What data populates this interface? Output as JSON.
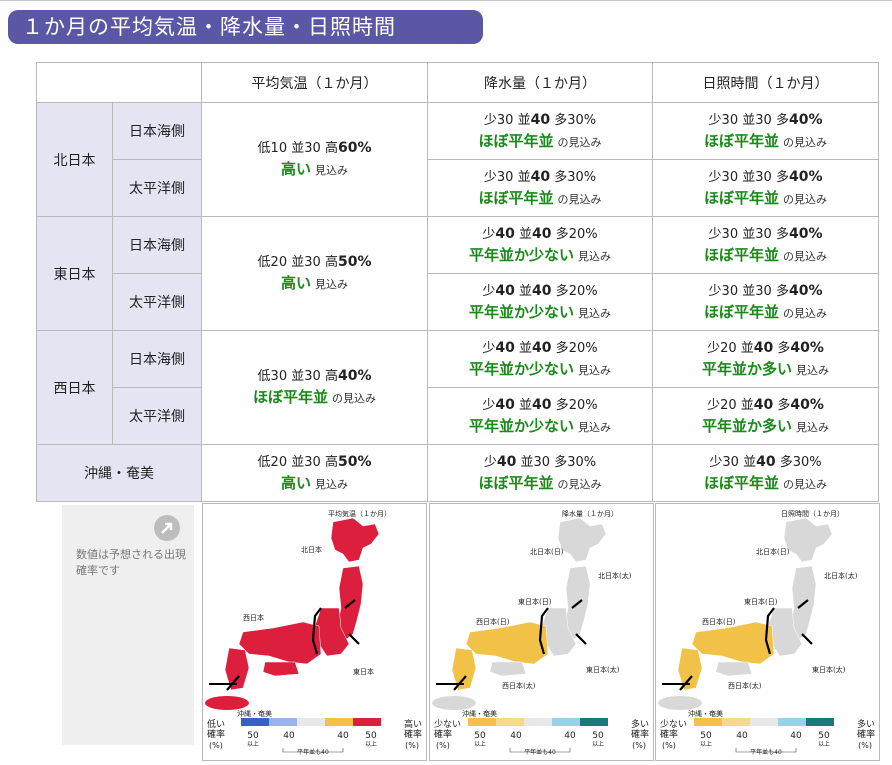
{
  "title": "１か月の平均気温・降水量・日照時間",
  "columns": [
    "平均気温（１か月）",
    "降水量（１か月）",
    "日照時間（１か月）"
  ],
  "regions": [
    {
      "name": "北日本",
      "subs": [
        "日本海側",
        "太平洋側"
      ]
    },
    {
      "name": "東日本",
      "subs": [
        "日本海側",
        "太平洋側"
      ]
    },
    {
      "name": "西日本",
      "subs": [
        "日本海側",
        "太平洋側"
      ]
    },
    {
      "name": "沖縄・奄美"
    }
  ],
  "labels": {
    "low_t": "低",
    "mid": "並",
    "high_t": "高",
    "less": "少",
    "more": "多",
    "pct": "%",
    "mikomi": "の見込み",
    "mikomi2": "見込み"
  },
  "temperature": [
    {
      "l": "10",
      "m": "30",
      "h": "60",
      "emph": "h",
      "eval": "高い",
      "suffix": "見込み"
    },
    {
      "l": "20",
      "m": "30",
      "h": "50",
      "emph": "h",
      "eval": "高い",
      "suffix": "見込み"
    },
    {
      "l": "30",
      "m": "30",
      "h": "40",
      "emph": "h",
      "eval": "ほぼ平年並",
      "suffix": "の見込み"
    },
    {
      "l": "20",
      "m": "30",
      "h": "50",
      "emph": "h",
      "eval": "高い",
      "suffix": "見込み"
    }
  ],
  "precipitation": [
    {
      "l": "30",
      "m": "40",
      "h": "30",
      "emph": "m",
      "eval": "ほぼ平年並",
      "suffix": "の見込み"
    },
    {
      "l": "30",
      "m": "40",
      "h": "30",
      "emph": "m",
      "eval": "ほぼ平年並",
      "suffix": "の見込み"
    },
    {
      "l": "40",
      "m": "40",
      "h": "20",
      "emph": "lm",
      "eval": "平年並か少ない",
      "suffix": "見込み"
    },
    {
      "l": "40",
      "m": "40",
      "h": "20",
      "emph": "lm",
      "eval": "平年並か少ない",
      "suffix": "見込み"
    },
    {
      "l": "40",
      "m": "40",
      "h": "20",
      "emph": "lm",
      "eval": "平年並か少ない",
      "suffix": "見込み"
    },
    {
      "l": "40",
      "m": "40",
      "h": "20",
      "emph": "lm",
      "eval": "平年並か少ない",
      "suffix": "見込み"
    },
    {
      "l": "40",
      "m": "30",
      "h": "30",
      "emph": "l",
      "eval": "ほぼ平年並",
      "suffix": "の見込み"
    }
  ],
  "sunshine": [
    {
      "l": "30",
      "m": "30",
      "h": "40",
      "emph": "h",
      "eval": "ほぼ平年並",
      "suffix": "の見込み"
    },
    {
      "l": "30",
      "m": "30",
      "h": "40",
      "emph": "h",
      "eval": "ほぼ平年並",
      "suffix": "の見込み"
    },
    {
      "l": "30",
      "m": "30",
      "h": "40",
      "emph": "h",
      "eval": "ほぼ平年並",
      "suffix": "の見込み"
    },
    {
      "l": "30",
      "m": "30",
      "h": "40",
      "emph": "h",
      "eval": "ほぼ平年並",
      "suffix": "の見込み"
    },
    {
      "l": "20",
      "m": "40",
      "h": "40",
      "emph": "mh",
      "eval": "平年並か多い",
      "suffix": "見込み"
    },
    {
      "l": "20",
      "m": "40",
      "h": "40",
      "emph": "mh",
      "eval": "平年並か多い",
      "suffix": "見込み"
    },
    {
      "l": "30",
      "m": "40",
      "h": "30",
      "emph": "m",
      "eval": "ほぼ平年並",
      "suffix": "の見込み"
    }
  ],
  "note": "数値は予想される出現確率です",
  "note_icon": "arrow-icon",
  "maps": [
    {
      "caption": "平均気温（１か月）",
      "fill": "#dc1f3c",
      "region_labels": [
        "北日本",
        "西日本",
        "東日本",
        "沖縄・奄美"
      ],
      "legend": {
        "left": "低い",
        "right": "高い",
        "left2": "確率",
        "right2": "確率",
        "lp": "(%)",
        "rp": "(%)",
        "ticks": [
          "50",
          "40",
          "40",
          "50"
        ],
        "ijou": "以上",
        "mid": "平年並も40"
      }
    },
    {
      "caption": "降水量（１か月）",
      "fill": "#f2c148",
      "region_labels": [
        "北日本(日)",
        "北日本(太)",
        "東日本(日)",
        "西日本(日)",
        "東日本(太)",
        "西日本(太)",
        "沖縄・奄美"
      ],
      "legend": {
        "left": "少ない",
        "right": "多い",
        "left2": "確率",
        "right2": "確率",
        "lp": "(%)",
        "rp": "(%)",
        "ticks": [
          "50",
          "40",
          "40",
          "50"
        ],
        "ijou": "以上",
        "mid": "平年並も40"
      }
    },
    {
      "caption": "日照時間（１か月）",
      "fill": "#f2c148",
      "region_labels": [
        "北日本(日)",
        "北日本(太)",
        "東日本(日)",
        "西日本(日)",
        "東日本(太)",
        "西日本(太)",
        "沖縄・奄美"
      ],
      "legend": {
        "left": "少ない",
        "right": "多い",
        "left2": "確率",
        "right2": "確率",
        "lp": "(%)",
        "rp": "(%)",
        "ticks": [
          "50",
          "40",
          "40",
          "50"
        ],
        "ijou": "以上",
        "mid": "平年並も40"
      }
    }
  ],
  "colors": {
    "banner": "#5a57a5",
    "header_bg": "#e4e4f3",
    "eval_green": "#1a8a1a",
    "red": "#dc1f3c",
    "yellow": "#f2c148",
    "gray": "#d8d8d8"
  }
}
